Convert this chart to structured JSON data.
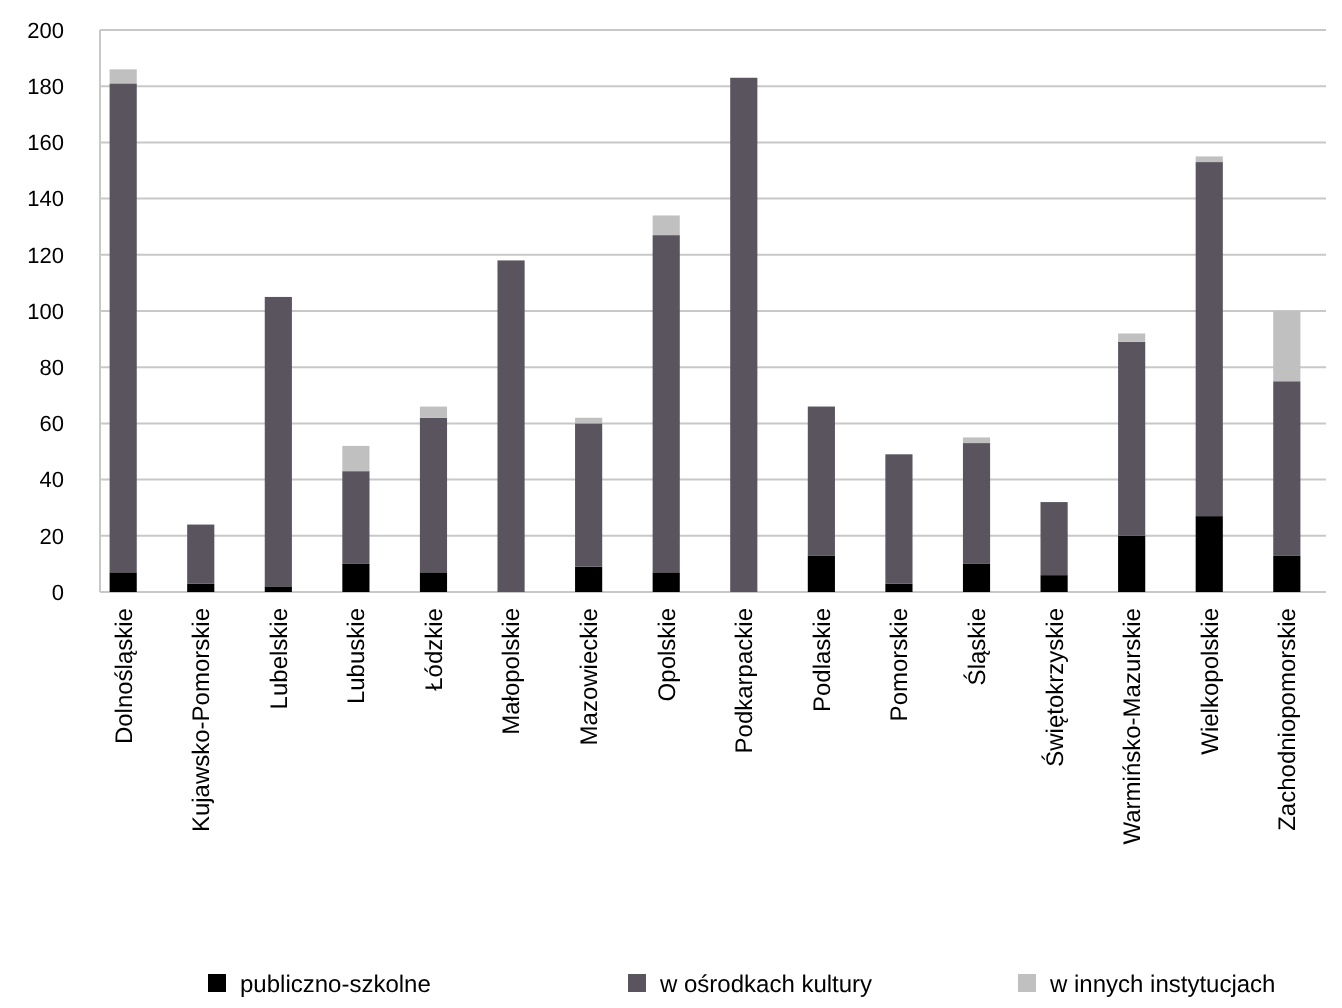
{
  "chart_data": {
    "type": "bar",
    "stacked": true,
    "categories": [
      "Dolnośląskie",
      "Kujawsko-Pomorskie",
      "Lubelskie",
      "Lubuskie",
      "Łódzkie",
      "Małopolskie",
      "Mazowieckie",
      "Opolskie",
      "Podkarpackie",
      "Podlaskie",
      "Pomorskie",
      "Śląskie",
      "Świętokrzyskie",
      "Warmińsko-Mazurskie",
      "Wielkopolskie",
      "Zachodniopomorskie"
    ],
    "series": [
      {
        "name": "publiczno-szkolne",
        "color": "#000000",
        "values": [
          7,
          3,
          2,
          10,
          7,
          0,
          9,
          7,
          0,
          13,
          3,
          10,
          6,
          20,
          27,
          13
        ]
      },
      {
        "name": "w ośrodkach kultury",
        "color": "#59545e",
        "values": [
          174,
          21,
          103,
          33,
          55,
          118,
          51,
          120,
          183,
          53,
          46,
          43,
          26,
          69,
          126,
          62
        ]
      },
      {
        "name": "w innych instytucjach",
        "color": "#c0c0c0",
        "values": [
          5,
          0,
          0,
          9,
          4,
          0,
          2,
          7,
          0,
          0,
          0,
          2,
          0,
          3,
          2,
          25
        ]
      }
    ],
    "ylim": [
      0,
      200
    ],
    "yticks": [
      0,
      20,
      40,
      60,
      80,
      100,
      120,
      140,
      160,
      180,
      200
    ],
    "grid": "y",
    "legend": "bottom"
  }
}
